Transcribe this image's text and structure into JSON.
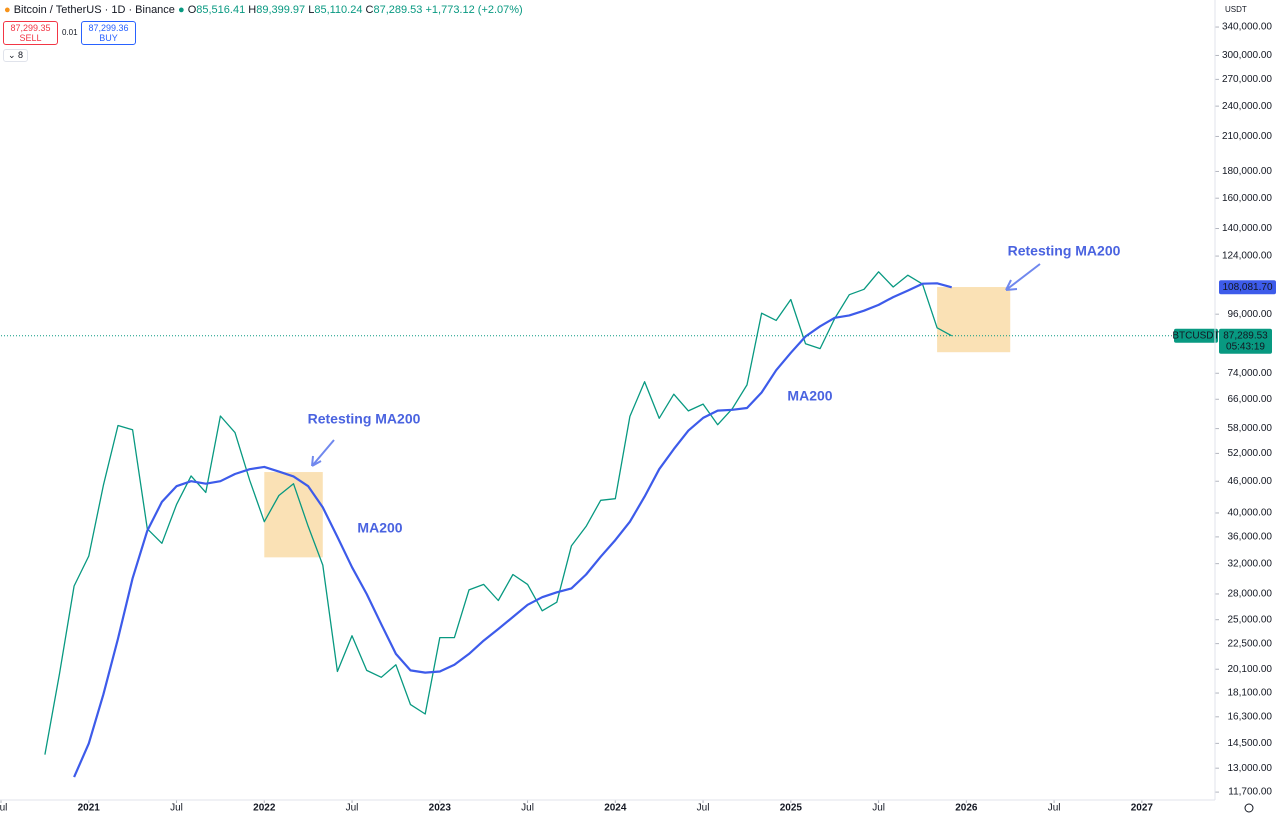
{
  "header": {
    "symbol": "Bitcoin / TetherUS · 1D · Binance",
    "open_label": "O",
    "open": "85,516.41",
    "high_label": "H",
    "high": "89,399.97",
    "low_label": "L",
    "low": "85,110.24",
    "close_label": "C",
    "close": "87,289.53",
    "change": "+1,773.12 (+2.07%)",
    "sell_price": "87,299.35",
    "sell": "SELL",
    "spread": "0.01",
    "buy_price": "87,299.36",
    "buy": "BUY",
    "indicators_count": "8"
  },
  "price_scale": {
    "currency": "USDT",
    "symbol_tag": "BTCUSDT",
    "last_price": "87,289.53",
    "countdown": "05:43:19",
    "ma_tag": "108,081.70"
  },
  "chart_data": {
    "type": "line",
    "yscale": "log",
    "grid": false,
    "x": [
      "2020-10",
      "2020-11",
      "2020-12",
      "2021-01",
      "2021-02",
      "2021-03",
      "2021-04",
      "2021-05",
      "2021-06",
      "2021-07",
      "2021-08",
      "2021-09",
      "2021-10",
      "2021-11",
      "2021-12",
      "2022-01",
      "2022-02",
      "2022-03",
      "2022-04",
      "2022-05",
      "2022-06",
      "2022-07",
      "2022-08",
      "2022-09",
      "2022-10",
      "2022-11",
      "2022-12",
      "2023-01",
      "2023-02",
      "2023-03",
      "2023-04",
      "2023-05",
      "2023-06",
      "2023-07",
      "2023-08",
      "2023-09",
      "2023-10",
      "2023-11",
      "2023-12",
      "2024-01",
      "2024-02",
      "2024-03",
      "2024-04",
      "2024-05",
      "2024-06",
      "2024-07",
      "2024-08",
      "2024-09",
      "2024-10",
      "2024-11",
      "2024-12",
      "2025-01",
      "2025-02",
      "2025-03",
      "2025-04",
      "2025-05",
      "2025-06",
      "2025-07",
      "2025-08",
      "2025-09",
      "2025-10",
      "2025-11",
      "2025-12"
    ],
    "series": [
      {
        "name": "BTCUSDT",
        "color": "#089981",
        "values": [
          13800,
          19700,
          29000,
          33100,
          45200,
          58800,
          57700,
          37300,
          35000,
          41500,
          47100,
          43800,
          61300,
          57000,
          46200,
          38500,
          43200,
          45500,
          37700,
          31800,
          19900,
          23300,
          20000,
          19400,
          20500,
          17200,
          16500,
          23100,
          23100,
          28500,
          29200,
          27200,
          30500,
          29200,
          26000,
          27000,
          34600,
          37700,
          42300,
          42600,
          61200,
          71300,
          60700,
          67500,
          62700,
          64600,
          59000,
          63300,
          70300,
          96400,
          93400,
          102400,
          84300,
          82500,
          94200,
          104600,
          107100,
          115700,
          108200,
          114000,
          109600,
          90400,
          87289.53
        ]
      },
      {
        "name": "MA200",
        "color": "#3d5bea",
        "values": [
          null,
          null,
          12500,
          14500,
          18000,
          23000,
          30000,
          37000,
          42000,
          45000,
          46000,
          45500,
          46000,
          47500,
          48500,
          49000,
          48000,
          47000,
          45000,
          41000,
          36000,
          31500,
          28000,
          24500,
          21500,
          20000,
          19800,
          19900,
          20500,
          21500,
          22800,
          24000,
          25300,
          26700,
          27600,
          28200,
          28700,
          30500,
          33000,
          35500,
          38500,
          43000,
          48500,
          53000,
          57500,
          60800,
          62800,
          63000,
          63500,
          68000,
          75000,
          81000,
          87000,
          91000,
          94500,
          95500,
          97500,
          100000,
          103500,
          106500,
          109800,
          110000,
          108081.7
        ]
      }
    ],
    "xlim": [
      "2020-07",
      "2027-06"
    ],
    "xticks": [
      {
        "value": "2020-07",
        "label": "Jul"
      },
      {
        "value": "2021-01",
        "label": "2021"
      },
      {
        "value": "2021-07",
        "label": "Jul"
      },
      {
        "value": "2022-01",
        "label": "2022"
      },
      {
        "value": "2022-07",
        "label": "Jul"
      },
      {
        "value": "2023-01",
        "label": "2023"
      },
      {
        "value": "2023-07",
        "label": "Jul"
      },
      {
        "value": "2024-01",
        "label": "2024"
      },
      {
        "value": "2024-07",
        "label": "Jul"
      },
      {
        "value": "2025-01",
        "label": "2025"
      },
      {
        "value": "2025-07",
        "label": "Jul"
      },
      {
        "value": "2026-01",
        "label": "2026"
      },
      {
        "value": "2026-07",
        "label": "Jul"
      },
      {
        "value": "2027-01",
        "label": "2027"
      }
    ],
    "ylim": [
      11300,
      383000
    ],
    "yticks": [
      {
        "value": 340000,
        "label": "340,000.00"
      },
      {
        "value": 300000,
        "label": "300,000.00"
      },
      {
        "value": 270000,
        "label": "270,000.00"
      },
      {
        "value": 240000,
        "label": "240,000.00"
      },
      {
        "value": 210000,
        "label": "210,000.00"
      },
      {
        "value": 180000,
        "label": "180,000.00"
      },
      {
        "value": 160000,
        "label": "160,000.00"
      },
      {
        "value": 140000,
        "label": "140,000.00"
      },
      {
        "value": 124000,
        "label": "124,000.00"
      },
      {
        "value": 96000,
        "label": "96,000.00"
      },
      {
        "value": 74000,
        "label": "74,000.00"
      },
      {
        "value": 66000,
        "label": "66,000.00"
      },
      {
        "value": 58000,
        "label": "58,000.00"
      },
      {
        "value": 52000,
        "label": "52,000.00"
      },
      {
        "value": 46000,
        "label": "46,000.00"
      },
      {
        "value": 40000,
        "label": "40,000.00"
      },
      {
        "value": 36000,
        "label": "36,000.00"
      },
      {
        "value": 32000,
        "label": "32,000.00"
      },
      {
        "value": 28000,
        "label": "28,000.00"
      },
      {
        "value": 25000,
        "label": "25,000.00"
      },
      {
        "value": 22500,
        "label": "22,500.00"
      },
      {
        "value": 20100,
        "label": "20,100.00"
      },
      {
        "value": 18100,
        "label": "18,100.00"
      },
      {
        "value": 16300,
        "label": "16,300.00"
      },
      {
        "value": 14500,
        "label": "14,500.00"
      },
      {
        "value": 13000,
        "label": "13,000.00"
      },
      {
        "value": 11700,
        "label": "11,700.00"
      }
    ],
    "highlights": [
      {
        "color": "#f9dca8",
        "x": [
          "2022-01",
          "2022-05"
        ],
        "y": [
          32900,
          47900
        ]
      },
      {
        "color": "#f9dca8",
        "x": [
          "2025-11",
          "2026-04"
        ],
        "y": [
          81200,
          108200
        ]
      }
    ],
    "annotations": [
      "Retesting MA200",
      "MA200",
      "MA200",
      "Retesting MA200"
    ]
  }
}
